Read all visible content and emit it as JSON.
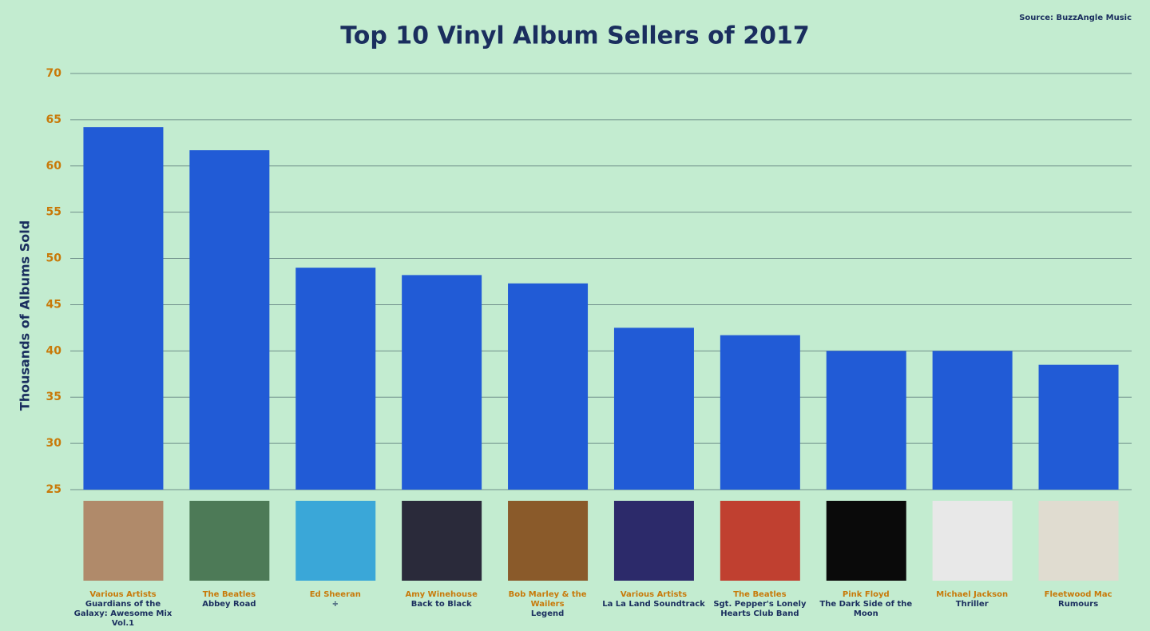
{
  "chart_data": {
    "type": "bar",
    "title": "Top 10 Vinyl Album Sellers of 2017",
    "source": "Source: BuzzAngle Music",
    "y_label": "Thousands of Albums Sold",
    "artists": [
      "Various Artists",
      "The Beatles",
      "Ed Sheeran",
      "Amy Winehouse",
      "Bob Marley & the Wailers",
      "Various Artists",
      "The Beatles",
      "Pink Floyd",
      "Michael Jackson",
      "Fleetwood Mac"
    ],
    "categories": [
      "Guardians of the Galaxy: Awesome Mix Vol.1",
      "Abbey Road",
      "÷",
      "Back to Black",
      "Legend",
      "La La Land Soundtrack",
      "Sgt. Pepper's Lonely Hearts Club Band",
      "The Dark Side of the Moon",
      "Thriller",
      "Rumours"
    ],
    "values": [
      64.2,
      61.7,
      49.0,
      48.2,
      47.3,
      42.5,
      41.7,
      40.0,
      40.0,
      38.5
    ],
    "color": "#215bd6",
    "ylim": [
      25,
      70
    ],
    "yticks": [
      25,
      30,
      35,
      40,
      45,
      50,
      55,
      60,
      65,
      70
    ],
    "grid": true
  }
}
